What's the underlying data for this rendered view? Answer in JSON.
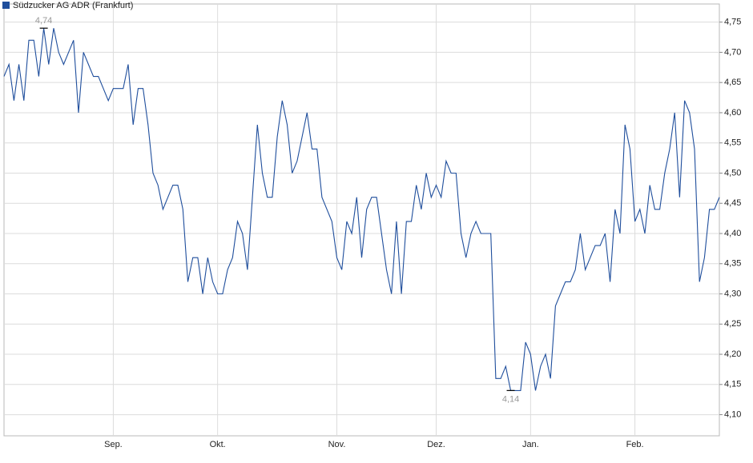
{
  "chart_data": {
    "type": "line",
    "categories": [
      null,
      null,
      null,
      null,
      null,
      null,
      null,
      null,
      null,
      null,
      null,
      null,
      null,
      null,
      null,
      null,
      null,
      null,
      null,
      null,
      null,
      null,
      "Sep.",
      null,
      null,
      null,
      null,
      null,
      null,
      null,
      null,
      null,
      null,
      null,
      null,
      null,
      null,
      null,
      null,
      null,
      null,
      null,
      null,
      "Okt.",
      null,
      null,
      null,
      null,
      null,
      null,
      null,
      null,
      null,
      null,
      null,
      null,
      null,
      null,
      null,
      null,
      null,
      null,
      null,
      null,
      null,
      null,
      null,
      "Nov.",
      null,
      null,
      null,
      null,
      null,
      null,
      null,
      null,
      null,
      null,
      null,
      null,
      null,
      null,
      null,
      null,
      null,
      null,
      null,
      "Dez.",
      null,
      null,
      null,
      null,
      null,
      null,
      null,
      null,
      null,
      null,
      null,
      null,
      null,
      null,
      null,
      null,
      null,
      null,
      "Jan.",
      null,
      null,
      null,
      null,
      null,
      null,
      null,
      null,
      null,
      null,
      null,
      null,
      null,
      null,
      null,
      null,
      null,
      null,
      null,
      null,
      "Feb.",
      null,
      null,
      null,
      null,
      null,
      null,
      null,
      null,
      null,
      null,
      null,
      null,
      null,
      null,
      null,
      null,
      null
    ],
    "series": [
      {
        "name": "Südzucker AG ADR (Frankfurt)",
        "color": "#1f4e9c",
        "values": [
          4.66,
          4.68,
          4.62,
          4.68,
          4.62,
          4.72,
          4.72,
          4.66,
          4.74,
          4.68,
          4.74,
          4.7,
          4.68,
          4.7,
          4.72,
          4.6,
          4.7,
          4.68,
          4.66,
          4.66,
          4.64,
          4.62,
          4.64,
          4.64,
          4.64,
          4.68,
          4.58,
          4.64,
          4.64,
          4.58,
          4.5,
          4.48,
          4.44,
          4.46,
          4.48,
          4.48,
          4.44,
          4.32,
          4.36,
          4.36,
          4.3,
          4.36,
          4.32,
          4.3,
          4.3,
          4.34,
          4.36,
          4.42,
          4.4,
          4.34,
          4.46,
          4.58,
          4.5,
          4.46,
          4.46,
          4.56,
          4.62,
          4.58,
          4.5,
          4.52,
          4.56,
          4.6,
          4.54,
          4.54,
          4.46,
          4.44,
          4.42,
          4.36,
          4.34,
          4.42,
          4.4,
          4.46,
          4.36,
          4.44,
          4.46,
          4.46,
          4.4,
          4.34,
          4.3,
          4.42,
          4.3,
          4.42,
          4.42,
          4.48,
          4.44,
          4.5,
          4.46,
          4.48,
          4.46,
          4.52,
          4.5,
          4.5,
          4.4,
          4.36,
          4.4,
          4.42,
          4.4,
          4.4,
          4.4,
          4.16,
          4.16,
          4.18,
          4.14,
          4.14,
          4.14,
          4.22,
          4.2,
          4.14,
          4.18,
          4.2,
          4.16,
          4.28,
          4.3,
          4.32,
          4.32,
          4.34,
          4.4,
          4.34,
          4.36,
          4.38,
          4.38,
          4.4,
          4.32,
          4.44,
          4.4,
          4.58,
          4.54,
          4.42,
          4.44,
          4.4,
          4.48,
          4.44,
          4.44,
          4.5,
          4.54,
          4.6,
          4.46,
          4.62,
          4.6,
          4.54,
          4.32,
          4.36,
          4.44,
          4.44,
          4.46
        ]
      }
    ],
    "ylim": [
      4.065,
      4.78
    ],
    "yticks": [
      {
        "value": 4.1,
        "label": "4,10"
      },
      {
        "value": 4.15,
        "label": "4,15"
      },
      {
        "value": 4.2,
        "label": "4,20"
      },
      {
        "value": 4.25,
        "label": "4,25"
      },
      {
        "value": 4.3,
        "label": "4,30"
      },
      {
        "value": 4.35,
        "label": "4,35"
      },
      {
        "value": 4.4,
        "label": "4,40"
      },
      {
        "value": 4.45,
        "label": "4,45"
      },
      {
        "value": 4.5,
        "label": "4,50"
      },
      {
        "value": 4.55,
        "label": "4,55"
      },
      {
        "value": 4.6,
        "label": "4,60"
      },
      {
        "value": 4.65,
        "label": "4,65"
      },
      {
        "value": 4.7,
        "label": "4,70"
      },
      {
        "value": 4.75,
        "label": "4,75"
      }
    ],
    "max_label": {
      "value": 4.74,
      "label": "4,74"
    },
    "min_label": {
      "value": 4.14,
      "label": "4,14"
    },
    "grid": true
  }
}
